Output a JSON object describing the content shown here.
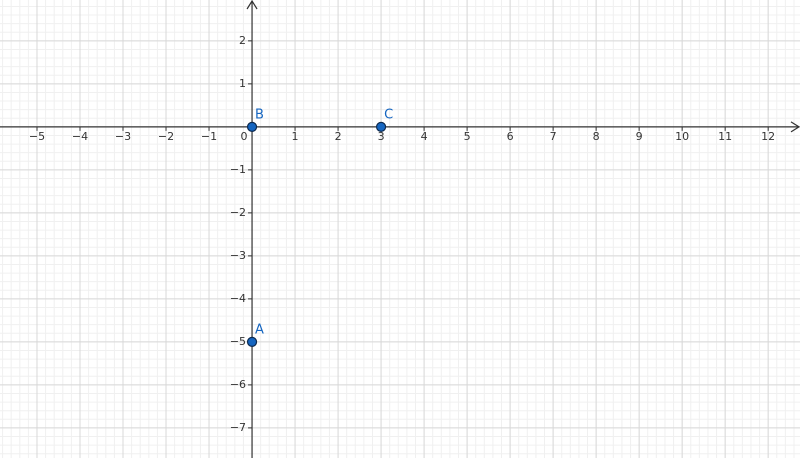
{
  "chart_data": {
    "type": "scatter",
    "x": [
      0,
      0,
      3
    ],
    "values": [
      -5,
      0,
      0
    ],
    "point_labels": [
      "A",
      "B",
      "C"
    ],
    "color": "#1565c0",
    "xlim": [
      -5.86,
      12.74
    ],
    "ylim": [
      -7.7,
      2.95
    ],
    "xticks": [
      {
        "value": -5,
        "label": "−5"
      },
      {
        "value": -4,
        "label": "−4"
      },
      {
        "value": -3,
        "label": "−3"
      },
      {
        "value": -2,
        "label": "−2"
      },
      {
        "value": -1,
        "label": "−1"
      },
      0,
      1,
      2,
      3,
      4,
      5,
      6,
      7,
      8,
      9,
      10,
      11,
      12
    ],
    "yticks": [
      {
        "value": -7,
        "label": "−7"
      },
      {
        "value": -6,
        "label": "−6"
      },
      {
        "value": -5,
        "label": "−5"
      },
      {
        "value": -4,
        "label": "−4"
      },
      {
        "value": -3,
        "label": "−3"
      },
      {
        "value": -2,
        "label": "−2"
      },
      {
        "value": -1,
        "label": "−1"
      },
      1,
      2
    ],
    "grid": true,
    "minor_grid_divisions": 5
  }
}
